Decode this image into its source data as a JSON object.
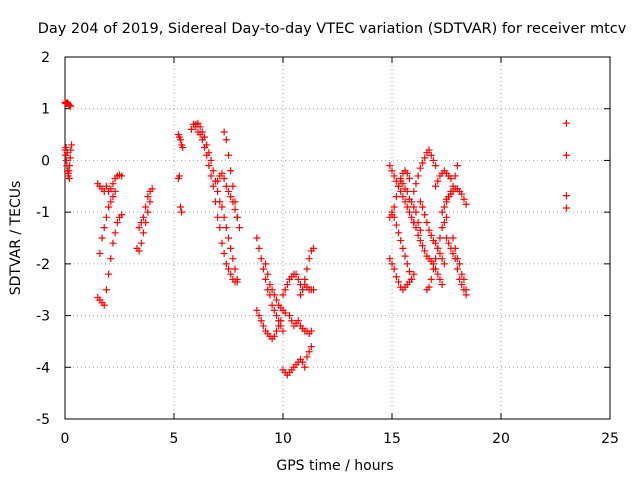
{
  "chart_data": {
    "type": "scatter",
    "title": "Day 204 of 2019, Sidereal Day-to-day VTEC variation (SDTVAR) for receiver mtcv",
    "xlabel": "GPS time / hours",
    "ylabel": "SDTVAR / TECUs",
    "xlim": [
      0,
      25
    ],
    "ylim": [
      -5,
      2
    ],
    "x_ticks": [
      "0",
      "5",
      "10",
      "15",
      "20",
      "25"
    ],
    "y_ticks": [
      "-5",
      "-4",
      "-3",
      "-2",
      "-1",
      "0",
      "1",
      "2"
    ],
    "grid": true,
    "marker": "plus",
    "color": "#ff0000",
    "segments": [
      {
        "x": [
          0.0,
          0.03,
          0.06,
          0.1,
          0.14,
          0.18,
          0.22,
          0.26
        ],
        "y": [
          1.12,
          1.1,
          1.1,
          1.12,
          1.1,
          1.08,
          1.06,
          1.05
        ]
      },
      {
        "x": [
          0.0,
          0.03,
          0.06,
          0.09,
          0.12,
          0.15,
          0.18,
          0.21,
          0.24,
          0.27,
          0.3,
          0.05,
          0.1,
          0.15,
          0.2
        ],
        "y": [
          0.2,
          0.1,
          0.0,
          -0.1,
          -0.2,
          -0.3,
          -0.2,
          -0.1,
          0.05,
          0.2,
          0.3,
          0.25,
          0.15,
          -0.25,
          -0.35
        ]
      },
      {
        "x": [
          1.5,
          1.6,
          1.7,
          1.8,
          1.9,
          2.0,
          2.1,
          2.2,
          2.3,
          2.4,
          2.5,
          2.6
        ],
        "y": [
          -0.45,
          -0.5,
          -0.55,
          -0.6,
          -0.5,
          -0.6,
          -0.55,
          -0.45,
          -0.35,
          -0.3,
          -0.28,
          -0.3
        ]
      },
      {
        "x": [
          1.5,
          1.6,
          1.7,
          1.8,
          1.9,
          2.0,
          2.1,
          2.2,
          2.3,
          2.4,
          2.5,
          2.6
        ],
        "y": [
          -2.65,
          -2.7,
          -2.75,
          -2.8,
          -2.5,
          -2.2,
          -1.9,
          -1.6,
          -1.4,
          -1.2,
          -1.1,
          -1.05
        ]
      },
      {
        "x": [
          1.6,
          1.7,
          1.8,
          1.9,
          2.0,
          2.1,
          2.2,
          2.3
        ],
        "y": [
          -1.8,
          -1.5,
          -1.3,
          -1.1,
          -0.9,
          -0.8,
          -0.7,
          -0.6
        ]
      },
      {
        "x": [
          3.3,
          3.4,
          3.5,
          3.6,
          3.7,
          3.8,
          3.9
        ],
        "y": [
          -1.7,
          -1.75,
          -1.6,
          -1.4,
          -1.2,
          -1.0,
          -0.8
        ]
      },
      {
        "x": [
          3.4,
          3.5,
          3.6,
          3.7,
          3.8,
          3.9,
          4.0
        ],
        "y": [
          -1.3,
          -1.2,
          -1.1,
          -0.9,
          -0.7,
          -0.6,
          -0.55
        ]
      },
      {
        "x": [
          5.2,
          5.25,
          5.3,
          5.35,
          5.4
        ],
        "y": [
          0.5,
          0.45,
          0.4,
          0.3,
          0.25
        ]
      },
      {
        "x": [
          5.2,
          5.25,
          5.3,
          5.35
        ],
        "y": [
          -0.35,
          -0.3,
          -0.9,
          -1.0
        ]
      },
      {
        "x": [
          5.8,
          5.9,
          6.0,
          6.1,
          6.2,
          6.3,
          6.4,
          6.5,
          6.6,
          6.7,
          6.8,
          6.9,
          7.0,
          7.1
        ],
        "y": [
          0.6,
          0.7,
          0.65,
          0.55,
          0.5,
          0.4,
          0.25,
          0.1,
          -0.1,
          -0.3,
          -0.5,
          -0.8,
          -1.1,
          -1.3
        ]
      },
      {
        "x": [
          6.0,
          6.1,
          6.2,
          6.3,
          6.4,
          6.5,
          6.6,
          6.7,
          6.8,
          6.9,
          7.0,
          7.1,
          7.2,
          7.3,
          7.4,
          7.5,
          7.6,
          7.7,
          7.8,
          7.9
        ],
        "y": [
          0.7,
          0.72,
          0.65,
          0.55,
          0.45,
          0.3,
          0.15,
          0.0,
          -0.2,
          -0.4,
          -0.6,
          -0.8,
          -0.9,
          -1.1,
          -1.3,
          -1.5,
          -1.7,
          -1.9,
          -2.1,
          -2.3
        ]
      },
      {
        "x": [
          7.0,
          7.1,
          7.2,
          7.3,
          7.4,
          7.5,
          7.6,
          7.7,
          7.8,
          7.9
        ],
        "y": [
          -0.4,
          -0.3,
          -0.25,
          -0.35,
          -0.5,
          -0.6,
          -0.7,
          -0.8,
          -0.95,
          -1.1
        ]
      },
      {
        "x": [
          7.3,
          7.4,
          7.5,
          7.6,
          7.7,
          7.8,
          7.9,
          8.0
        ],
        "y": [
          0.55,
          0.4,
          0.1,
          -0.2,
          -0.5,
          -0.8,
          -1.1,
          -1.3
        ]
      },
      {
        "x": [
          7.2,
          7.3,
          7.4,
          7.5,
          7.6,
          7.7,
          7.8,
          7.9
        ],
        "y": [
          -1.6,
          -1.8,
          -2.0,
          -2.1,
          -2.2,
          -2.3,
          -2.35,
          -2.35
        ]
      },
      {
        "x": [
          8.8,
          8.9,
          9.0,
          9.1,
          9.2,
          9.3,
          9.4,
          9.5,
          9.6,
          9.7,
          9.8,
          9.9,
          10.0
        ],
        "y": [
          -1.5,
          -1.7,
          -1.9,
          -2.1,
          -2.3,
          -2.5,
          -2.6,
          -2.8,
          -2.9,
          -3.0,
          -3.1,
          -3.2,
          -3.3
        ]
      },
      {
        "x": [
          8.8,
          8.9,
          9.0,
          9.1,
          9.2,
          9.3,
          9.4,
          9.5,
          9.6,
          9.7,
          9.8,
          9.9
        ],
        "y": [
          -2.9,
          -3.0,
          -3.1,
          -3.2,
          -3.3,
          -3.35,
          -3.4,
          -3.45,
          -3.4,
          -3.3,
          -3.2,
          -3.1
        ]
      },
      {
        "x": [
          9.2,
          9.3,
          9.4,
          9.5,
          9.6,
          9.7,
          9.8,
          9.9,
          10.0,
          10.1
        ],
        "y": [
          -2.0,
          -2.2,
          -2.4,
          -2.5,
          -2.6,
          -2.7,
          -2.8,
          -2.85,
          -2.9,
          -2.95
        ]
      },
      {
        "x": [
          10.0,
          10.1,
          10.2,
          10.3,
          10.4,
          10.5,
          10.6,
          10.7,
          10.8
        ],
        "y": [
          -2.6,
          -2.5,
          -2.4,
          -2.3,
          -2.25,
          -2.2,
          -2.2,
          -2.3,
          -2.4
        ]
      },
      {
        "x": [
          10.3,
          10.4,
          10.5,
          10.6,
          10.7,
          10.8,
          10.9,
          11.0,
          11.1,
          11.2,
          11.3
        ],
        "y": [
          -3.0,
          -3.1,
          -3.2,
          -3.15,
          -3.1,
          -3.2,
          -3.25,
          -3.3,
          -3.3,
          -3.35,
          -3.3
        ]
      },
      {
        "x": [
          10.8,
          10.9,
          11.0,
          11.1,
          11.2,
          11.3,
          11.4
        ],
        "y": [
          -2.6,
          -2.5,
          -2.3,
          -2.1,
          -1.9,
          -1.75,
          -1.7
        ]
      },
      {
        "x": [
          11.0,
          11.1,
          11.2,
          11.3,
          11.4
        ],
        "y": [
          -2.4,
          -2.45,
          -2.5,
          -2.5,
          -2.5
        ]
      },
      {
        "x": [
          10.0,
          10.1,
          10.2,
          10.3,
          10.4,
          10.5,
          10.6,
          10.7,
          10.8,
          10.9,
          11.0,
          11.1,
          11.2,
          11.3
        ],
        "y": [
          -4.05,
          -4.1,
          -4.15,
          -4.1,
          -4.05,
          -4.0,
          -3.95,
          -3.9,
          -3.85,
          -3.9,
          -4.0,
          -3.8,
          -3.7,
          -3.6
        ]
      },
      {
        "x": [
          14.9,
          15.0,
          15.1,
          15.2,
          15.3,
          15.4,
          15.5,
          15.6,
          15.7,
          15.8
        ],
        "y": [
          -1.1,
          -1.05,
          -0.9,
          -0.7,
          -0.5,
          -0.35,
          -0.25,
          -0.2,
          -0.25,
          -0.35
        ]
      },
      {
        "x": [
          14.9,
          15.0,
          15.1,
          15.2,
          15.3,
          15.4,
          15.5,
          15.6,
          15.7,
          15.8,
          15.9,
          16.0
        ],
        "y": [
          -0.1,
          -0.2,
          -0.3,
          -0.4,
          -0.5,
          -0.6,
          -0.7,
          -0.8,
          -0.9,
          -1.0,
          -1.1,
          -1.2
        ]
      },
      {
        "x": [
          14.9,
          15.0,
          15.1,
          15.2,
          15.3,
          15.4,
          15.5,
          15.6,
          15.7,
          15.8,
          15.9,
          16.0
        ],
        "y": [
          -1.9,
          -2.0,
          -2.1,
          -2.25,
          -2.35,
          -2.45,
          -2.5,
          -2.45,
          -2.4,
          -2.35,
          -2.3,
          -2.2
        ]
      },
      {
        "x": [
          15.0,
          15.1,
          15.2,
          15.3,
          15.4,
          15.5,
          15.6,
          15.7,
          15.8,
          15.9
        ],
        "y": [
          -1.0,
          -1.1,
          -1.25,
          -1.4,
          -1.55,
          -1.7,
          -1.85,
          -2.0,
          -2.15,
          -2.3
        ]
      },
      {
        "x": [
          15.4,
          15.5,
          15.6,
          15.7,
          15.8,
          15.9,
          16.0,
          16.1,
          16.2,
          16.3
        ],
        "y": [
          -0.4,
          -0.45,
          -0.55,
          -0.6,
          -0.75,
          -0.8,
          -0.9,
          -1.0,
          -1.2,
          -1.35
        ]
      },
      {
        "x": [
          16.0,
          16.1,
          16.2,
          16.3,
          16.4,
          16.5,
          16.6,
          16.7,
          16.8,
          16.9,
          17.0
        ],
        "y": [
          -0.6,
          -0.45,
          -0.3,
          -0.15,
          -0.05,
          0.05,
          0.15,
          0.2,
          0.1,
          0.0,
          -0.1
        ]
      },
      {
        "x": [
          16.0,
          16.1,
          16.2,
          16.3,
          16.4,
          16.5,
          16.6,
          16.7,
          16.8,
          16.9,
          17.0,
          17.1,
          17.2,
          17.3
        ],
        "y": [
          -1.2,
          -1.3,
          -1.45,
          -1.55,
          -1.65,
          -1.75,
          -1.85,
          -1.9,
          -1.95,
          -2.0,
          -2.1,
          -2.2,
          -2.3,
          -2.4
        ]
      },
      {
        "x": [
          16.3,
          16.4,
          16.5,
          16.6,
          16.7,
          16.8,
          16.9,
          17.0,
          17.1,
          17.2,
          17.3,
          17.4
        ],
        "y": [
          -0.8,
          -0.9,
          -1.05,
          -1.2,
          -1.35,
          -1.45,
          -1.55,
          -1.6,
          -1.7,
          -1.8,
          -1.9,
          -2.0
        ]
      },
      {
        "x": [
          16.6,
          16.7,
          16.8,
          16.9,
          17.0,
          17.1,
          17.2,
          17.3,
          17.4,
          17.5
        ],
        "y": [
          -2.5,
          -2.45,
          -2.3,
          -2.1,
          -1.9,
          -1.7,
          -1.5,
          -1.3,
          -1.2,
          -1.1
        ]
      },
      {
        "x": [
          17.0,
          17.1,
          17.2,
          17.3,
          17.4,
          17.5,
          17.6,
          17.7
        ],
        "y": [
          -0.5,
          -0.4,
          -0.3,
          -0.25,
          -0.2,
          -0.25,
          -0.3,
          -0.35
        ]
      },
      {
        "x": [
          17.3,
          17.4,
          17.5,
          17.6,
          17.7,
          17.8,
          17.9,
          18.0
        ],
        "y": [
          -1.0,
          -0.9,
          -0.8,
          -0.7,
          -0.6,
          -0.5,
          -0.3,
          -0.1
        ]
      },
      {
        "x": [
          17.5,
          17.6,
          17.7,
          17.8,
          17.9,
          18.0,
          18.1,
          18.2,
          18.3,
          18.4
        ],
        "y": [
          -0.75,
          -0.7,
          -0.65,
          -0.6,
          -0.55,
          -0.55,
          -0.6,
          -0.65,
          -0.75,
          -0.85
        ]
      },
      {
        "x": [
          17.5,
          17.6,
          17.7,
          17.8,
          17.9,
          18.0,
          18.1,
          18.2,
          18.3,
          18.4
        ],
        "y": [
          -1.5,
          -1.6,
          -1.7,
          -1.8,
          -1.9,
          -2.1,
          -2.3,
          -2.4,
          -2.5,
          -2.6
        ]
      },
      {
        "x": [
          17.8,
          17.9,
          18.0,
          18.1,
          18.2,
          18.3,
          18.4
        ],
        "y": [
          -1.5,
          -1.7,
          -1.9,
          -2.0,
          -2.2,
          -2.3,
          -2.5
        ]
      },
      {
        "x": [
          23.0,
          23.0,
          23.0,
          23.0
        ],
        "y": [
          0.72,
          0.1,
          -0.68,
          -0.92
        ]
      }
    ]
  }
}
